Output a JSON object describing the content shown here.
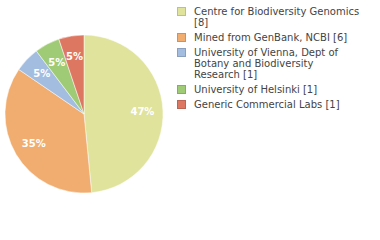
{
  "chart_data": {
    "type": "pie",
    "categories": [
      "Centre for Biodiversity Genomics [8]",
      "Mined from GenBank, NCBI [6]",
      "University of Vienna, Dept of Botany and Biodiversity Research [1]",
      "University of Helsinki [1]",
      "Generic Commercial Labs [1]"
    ],
    "values": [
      47,
      35,
      5,
      5,
      5
    ],
    "value_labels": [
      "47%",
      "35%",
      "5%",
      "5%",
      "5%"
    ],
    "colors": [
      "#dfe39b",
      "#f0ad6f",
      "#a3bde0",
      "#9fcb76",
      "#de7761"
    ],
    "data_labels": true,
    "legend": "right"
  }
}
